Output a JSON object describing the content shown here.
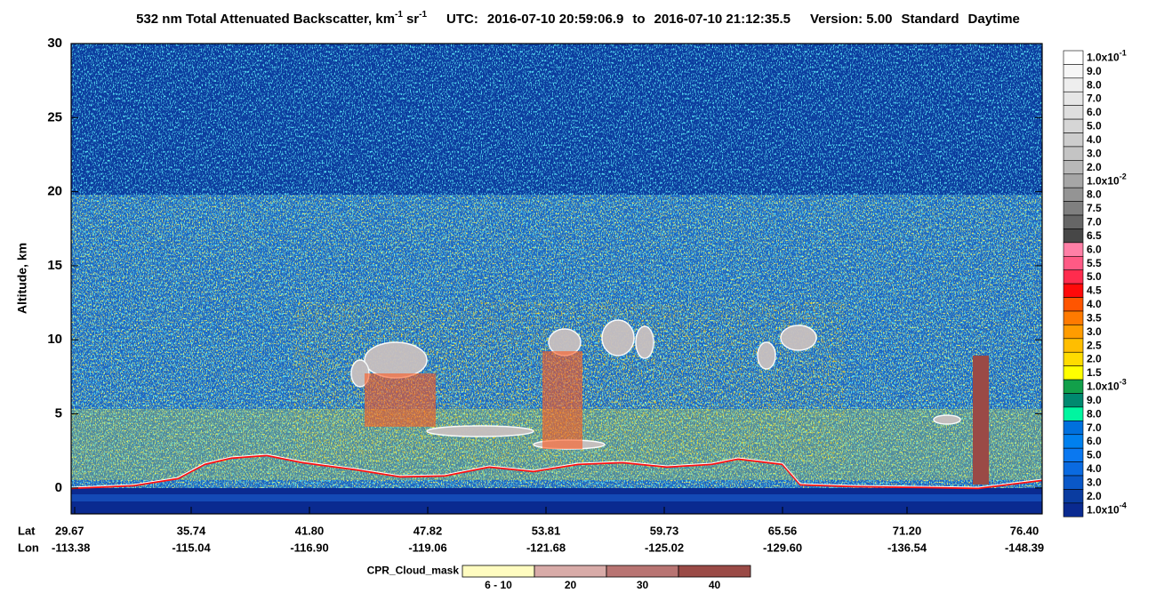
{
  "chart_data": {
    "type": "heatmap",
    "title": {
      "text": "532 nm Total Attenuated Backscatter, km",
      "exp1": "-1",
      "sr": "sr",
      "exp2": "-1",
      "utc": "UTC:",
      "start": "2016-07-10 20:59:06.9",
      "to": "to",
      "end": "2016-07-10 21:12:35.5",
      "version": "Version: 5.00",
      "product": "Standard",
      "daylight": "Daytime"
    },
    "ylabel": "Altitude, km",
    "ylim": [
      -1.75,
      30
    ],
    "yticks": [
      0,
      5,
      10,
      15,
      20,
      25,
      30
    ],
    "x_axis": {
      "lat_label": "Lat",
      "lon_label": "Lon",
      "lat": [
        "29.67",
        "35.74",
        "41.80",
        "47.82",
        "53.81",
        "59.73",
        "65.56",
        "71.20",
        "76.40"
      ],
      "lon": [
        "-113.38",
        "-115.04",
        "-116.90",
        "-119.06",
        "-121.68",
        "-125.02",
        "-129.60",
        "-136.54",
        "-148.39"
      ]
    },
    "colorbar": [
      {
        "label": "1.0x10",
        "exp": "-1",
        "color": "#ffffff"
      },
      {
        "label": "9.0",
        "color": "#f6f6f6"
      },
      {
        "label": "8.0",
        "color": "#eeeeee"
      },
      {
        "label": "7.0",
        "color": "#e6e6e6"
      },
      {
        "label": "6.0",
        "color": "#dedede"
      },
      {
        "label": "5.0",
        "color": "#d6d6d6"
      },
      {
        "label": "4.0",
        "color": "#cdcdcd"
      },
      {
        "label": "3.0",
        "color": "#c4c4c4"
      },
      {
        "label": "2.0",
        "color": "#b8b8b8"
      },
      {
        "label": "1.0x10",
        "exp": "-2",
        "color": "#a6a6a6"
      },
      {
        "label": "8.0",
        "color": "#949494"
      },
      {
        "label": "7.5",
        "color": "#7f7f7f"
      },
      {
        "label": "7.0",
        "color": "#666666"
      },
      {
        "label": "6.5",
        "color": "#474747"
      },
      {
        "label": "6.0",
        "color": "#ff7fa6"
      },
      {
        "label": "5.5",
        "color": "#ff5a85"
      },
      {
        "label": "5.0",
        "color": "#ff2c4e"
      },
      {
        "label": "4.5",
        "color": "#ff0a0a"
      },
      {
        "label": "4.0",
        "color": "#ff5500"
      },
      {
        "label": "3.5",
        "color": "#ff7a00"
      },
      {
        "label": "3.0",
        "color": "#ff9c00"
      },
      {
        "label": "2.5",
        "color": "#ffbe00"
      },
      {
        "label": "2.0",
        "color": "#ffdc00"
      },
      {
        "label": "1.5",
        "color": "#ffff00"
      },
      {
        "label": "1.0x10",
        "exp": "-3",
        "color": "#12a04a"
      },
      {
        "label": "9.0",
        "color": "#00896f"
      },
      {
        "label": "8.0",
        "color": "#00f5a0"
      },
      {
        "label": "7.0",
        "color": "#0070dd"
      },
      {
        "label": "6.0",
        "color": "#0080ee"
      },
      {
        "label": "5.0",
        "color": "#0a78f0"
      },
      {
        "label": "4.0",
        "color": "#0a6ae0"
      },
      {
        "label": "3.0",
        "color": "#0a58c8"
      },
      {
        "label": "2.0",
        "color": "#0a3ca0"
      },
      {
        "label": "1.0x10",
        "exp": "-4",
        "color": "#0a2a90"
      }
    ],
    "cloud_mask": {
      "title": "CPR_Cloud_mask",
      "bins": [
        {
          "label": "6 - 10",
          "color": "#fffcc0"
        },
        {
          "label": "20",
          "color": "#d8aba8"
        },
        {
          "label": "30",
          "color": "#b87472"
        },
        {
          "label": "40",
          "color": "#9a4a46"
        }
      ]
    }
  }
}
